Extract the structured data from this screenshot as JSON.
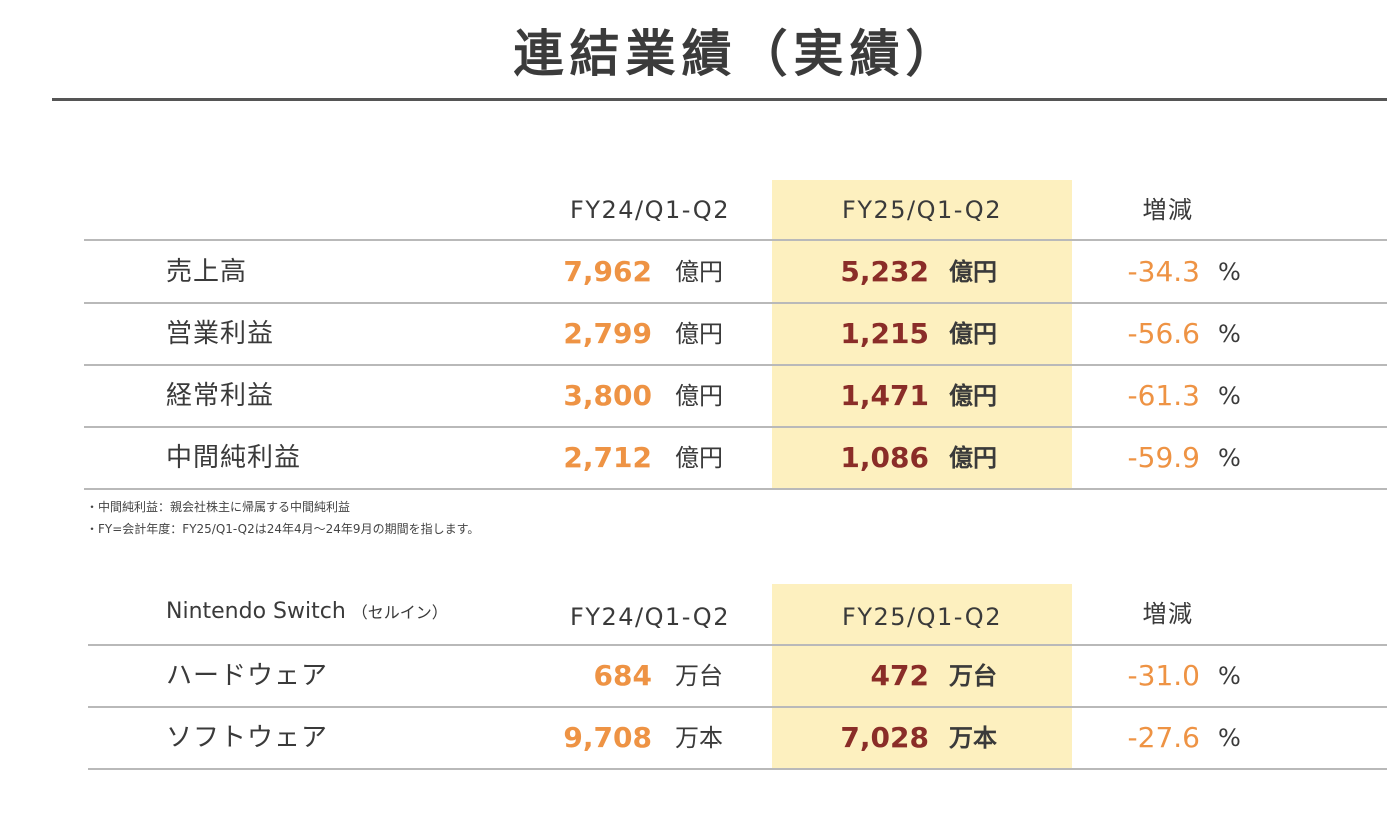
{
  "title": "連結業績（実績）",
  "table1": {
    "headers": {
      "prev": "FY24/Q1-Q2",
      "curr": "FY25/Q1-Q2",
      "change": "増減"
    },
    "rows": [
      {
        "label": "売上高",
        "prev": "7,962",
        "prev_unit": "億円",
        "curr": "5,232",
        "curr_unit": "億円",
        "change": "-34.3",
        "change_unit": "%"
      },
      {
        "label": "営業利益",
        "prev": "2,799",
        "prev_unit": "億円",
        "curr": "1,215",
        "curr_unit": "億円",
        "change": "-56.6",
        "change_unit": "%"
      },
      {
        "label": "経常利益",
        "prev": "3,800",
        "prev_unit": "億円",
        "curr": "1,471",
        "curr_unit": "億円",
        "change": "-61.3",
        "change_unit": "%"
      },
      {
        "label": "中間純利益",
        "prev": "2,712",
        "prev_unit": "億円",
        "curr": "1,086",
        "curr_unit": "億円",
        "change": "-59.9",
        "change_unit": "%"
      }
    ]
  },
  "notes": [
    "・中間純利益：親会社株主に帰属する中間純利益",
    "・FY=会計年度：FY25/Q1-Q2は24年4月～24年9月の期間を指します。"
  ],
  "table2": {
    "title": "Nintendo Switch",
    "title_sub": "（セルイン）",
    "headers": {
      "prev": "FY24/Q1-Q2",
      "curr": "FY25/Q1-Q2",
      "change": "増減"
    },
    "rows": [
      {
        "label": "ハードウェア",
        "prev": "684",
        "prev_unit": "万台",
        "curr": "472",
        "curr_unit": "万台",
        "change": "-31.0",
        "change_unit": "%"
      },
      {
        "label": "ソフトウェア",
        "prev": "9,708",
        "prev_unit": "万本",
        "curr": "7,028",
        "curr_unit": "万本",
        "change": "-27.6",
        "change_unit": "%"
      }
    ]
  },
  "colors": {
    "prev_value": "#ee9344",
    "curr_value": "#8a2d28",
    "highlight": "#fdf0bf",
    "change_value": "#ee9344"
  }
}
